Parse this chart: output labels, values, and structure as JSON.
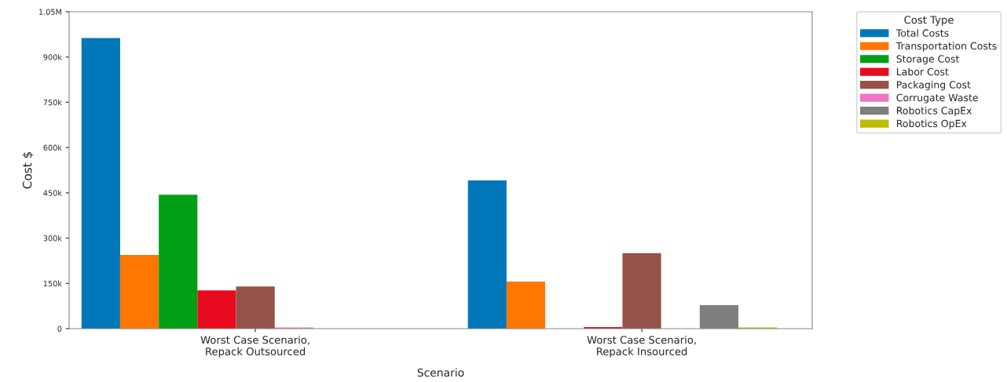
{
  "chart_data": {
    "type": "bar",
    "xlabel": "Scenario",
    "ylabel": "Cost $",
    "legend_title": "Cost Type",
    "legend": "top right",
    "categories": [
      "Worst Case Scenario,\nRepack Outsourced",
      "Worst Case Scenario,\nRepack Insourced"
    ],
    "series": [
      {
        "name": "Total Costs",
        "color": "#0077b8",
        "values": [
          963000,
          491000
        ]
      },
      {
        "name": "Transportation Costs",
        "color": "#ff7700",
        "values": [
          244000,
          156000
        ]
      },
      {
        "name": "Storage Cost",
        "color": "#009f16",
        "values": [
          444000,
          null
        ]
      },
      {
        "name": "Labor Cost",
        "color": "#e80b1f",
        "values": [
          127000,
          5000
        ]
      },
      {
        "name": "Packaging Cost",
        "color": "#955249",
        "values": [
          140000,
          250000
        ]
      },
      {
        "name": "Corrugate Waste",
        "color": "#f075c3",
        "values": [
          4000,
          null
        ]
      },
      {
        "name": "Robotics CapEx",
        "color": "#7f7f7f",
        "values": [
          null,
          78000
        ]
      },
      {
        "name": "Robotics OpEx",
        "color": "#bcbd00",
        "values": [
          null,
          4000
        ]
      }
    ],
    "ylim": [
      0,
      1050000
    ],
    "yticks": [
      {
        "value": 0,
        "label": "0"
      },
      {
        "value": 150000,
        "label": "150k"
      },
      {
        "value": 300000,
        "label": "300k"
      },
      {
        "value": 450000,
        "label": "450k"
      },
      {
        "value": 600000,
        "label": "600k"
      },
      {
        "value": 750000,
        "label": "750k"
      },
      {
        "value": 900000,
        "label": "900k"
      },
      {
        "value": 1050000,
        "label": "1.05M"
      }
    ],
    "grid": false
  }
}
